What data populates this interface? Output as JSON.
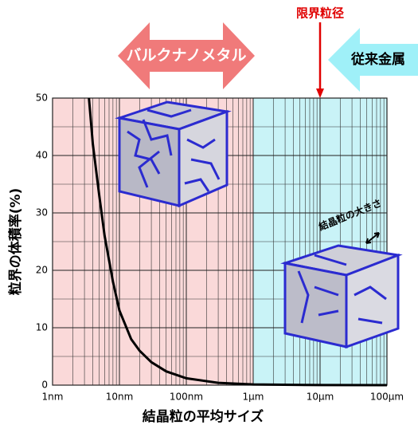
{
  "chart_data": {
    "type": "line",
    "x_label": "結晶粒の平均サイズ",
    "y_label": "粒界の体積率(%)",
    "log_x": true,
    "x": [
      3.5,
      4,
      5,
      6,
      8,
      10,
      15,
      20,
      30,
      50,
      100,
      300,
      1000,
      10000,
      100000
    ],
    "values": [
      50,
      42,
      33,
      26,
      18,
      13,
      8,
      6,
      4,
      2.4,
      1.2,
      0.4,
      0.12,
      0.01,
      0
    ],
    "color": "#000000",
    "xlim": [
      1,
      100000
    ],
    "xticks": [
      {
        "value": 1,
        "label": "1nm"
      },
      {
        "value": 10,
        "label": "10nm"
      },
      {
        "value": 100,
        "label": "100nm"
      },
      {
        "value": 1000,
        "label": "1μm"
      },
      {
        "value": 10000,
        "label": "10μm"
      },
      {
        "value": 100000,
        "label": "100μm"
      }
    ],
    "ylim": [
      0,
      50
    ],
    "yticks": [
      0,
      10,
      20,
      30,
      40,
      50
    ],
    "grid": true,
    "regions": [
      {
        "from": 1,
        "to": 1000,
        "color": "#fad9d9"
      },
      {
        "from": 1000,
        "to": 100000,
        "color": "#c9f3f7"
      }
    ],
    "annotations": [
      {
        "text": "限界粒径",
        "x": 10000,
        "color": "#e00000"
      },
      {
        "text": "バルクナノメタル",
        "color": "#f07a7a"
      },
      {
        "text": "従来金属",
        "color": "#9ff0f8"
      },
      {
        "text": "結晶粒の大きさ"
      }
    ]
  }
}
